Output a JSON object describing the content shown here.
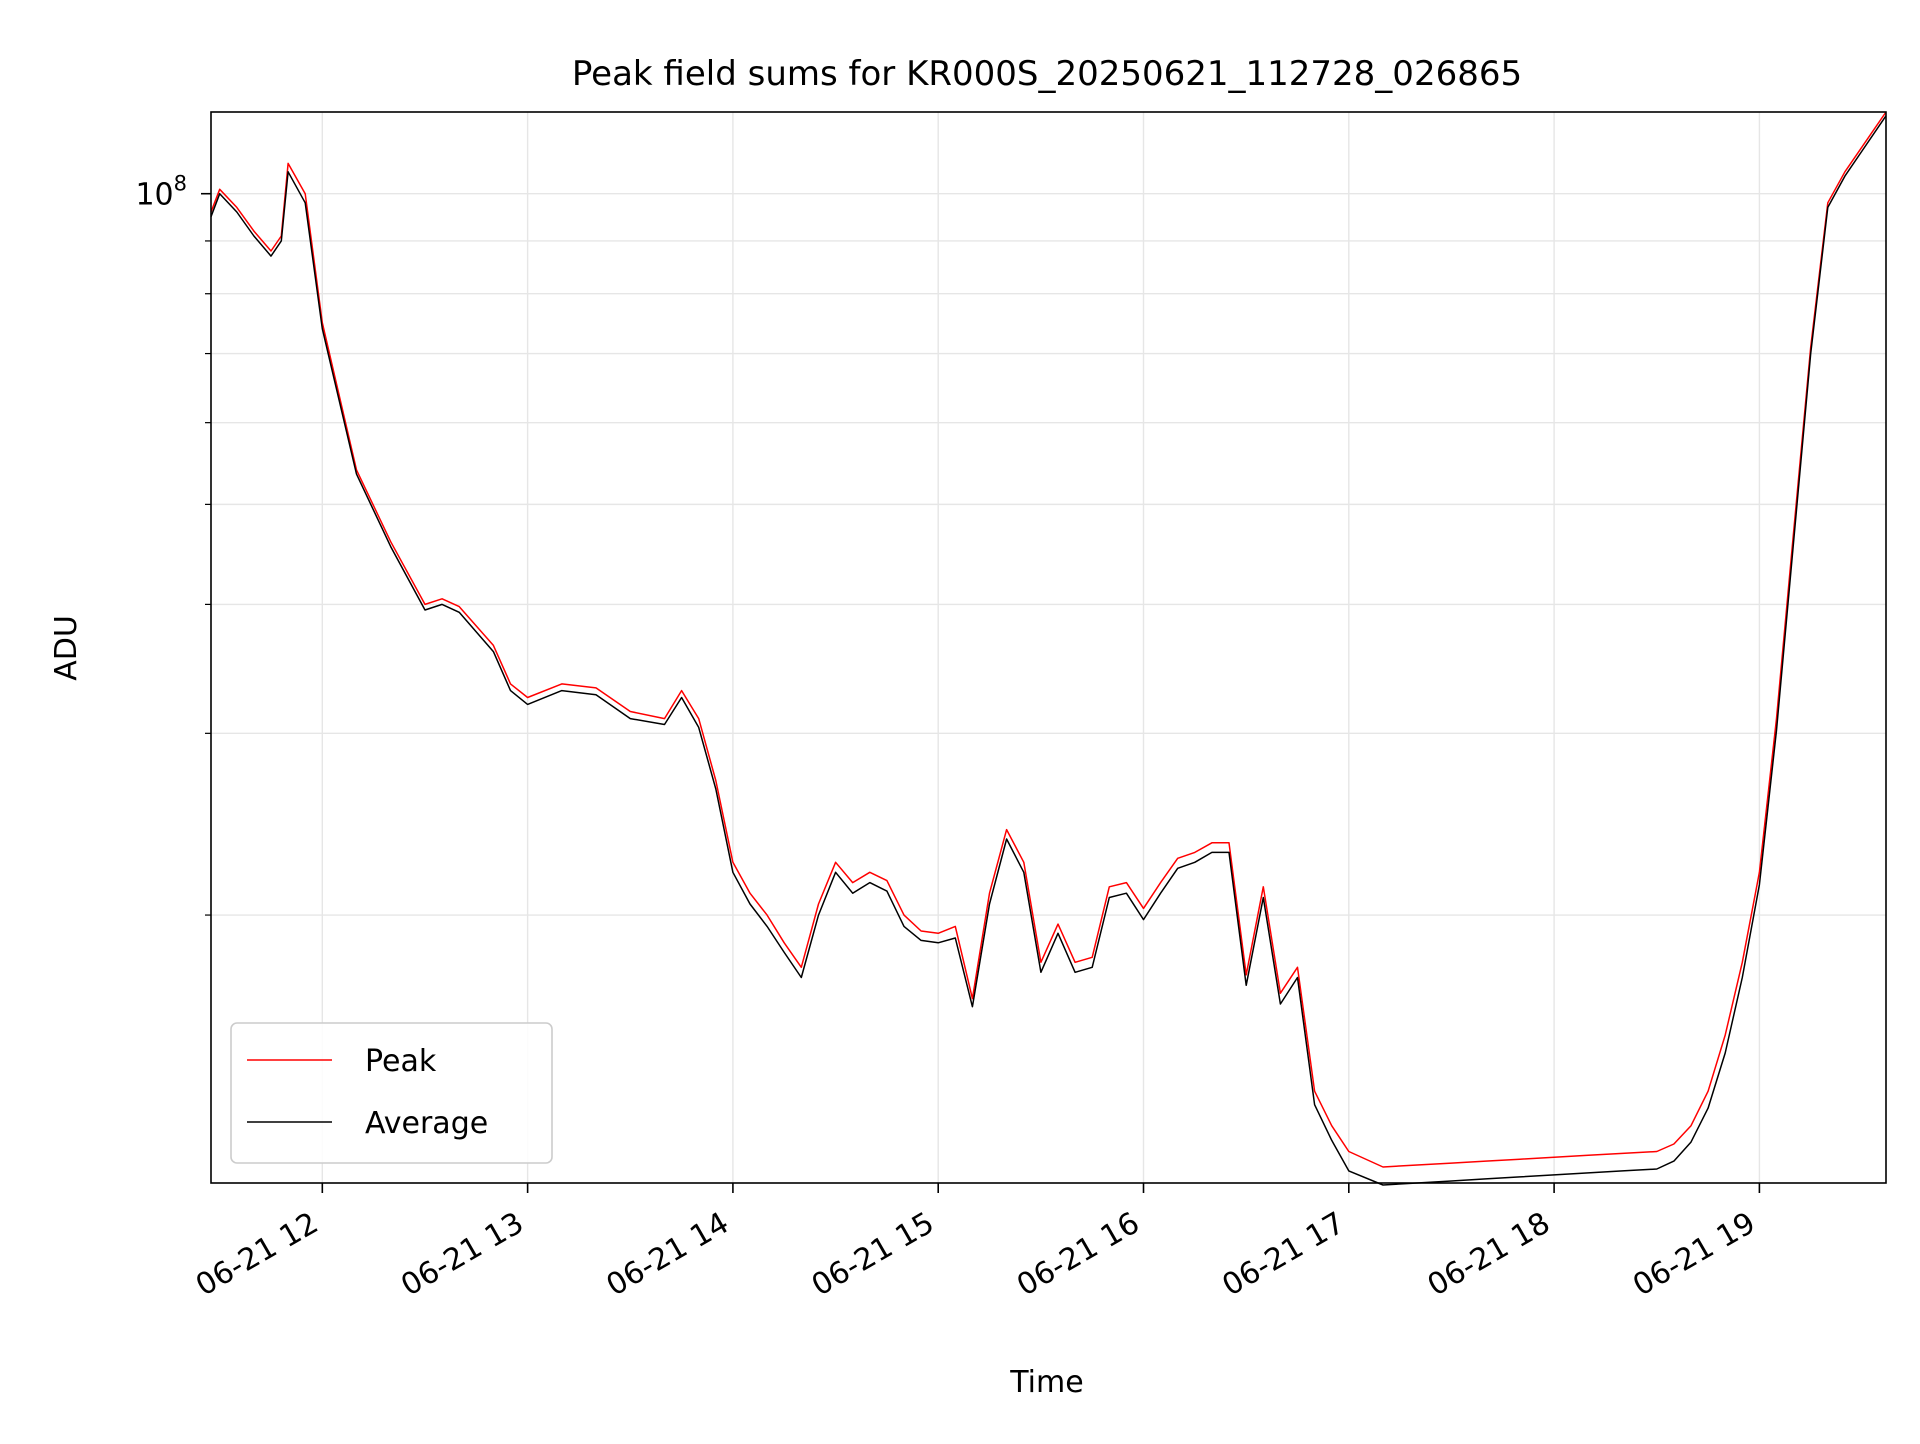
{
  "chart_data": {
    "type": "line",
    "title": "Peak field sums for KR000S_20250621_112728_026865",
    "xlabel": "Time",
    "ylabel": "ADU",
    "y_scale": "log",
    "ylim": [
      11000000,
      120000000
    ],
    "xlim": [
      "2025-06-21 11:27:28",
      "2025-06-21 19:37:00"
    ],
    "grid": true,
    "legend_position": "lower-left",
    "x_ticks": [
      {
        "t": "2025-06-21 12:00",
        "label": "06-21 12"
      },
      {
        "t": "2025-06-21 13:00",
        "label": "06-21 13"
      },
      {
        "t": "2025-06-21 14:00",
        "label": "06-21 14"
      },
      {
        "t": "2025-06-21 15:00",
        "label": "06-21 15"
      },
      {
        "t": "2025-06-21 16:00",
        "label": "06-21 16"
      },
      {
        "t": "2025-06-21 17:00",
        "label": "06-21 17"
      },
      {
        "t": "2025-06-21 18:00",
        "label": "06-21 18"
      },
      {
        "t": "2025-06-21 19:00",
        "label": "06-21 19"
      }
    ],
    "y_major_ticks": [
      {
        "value": 100000000,
        "base": "10",
        "exp": "8"
      }
    ],
    "y_minor_ticks": [
      20000000,
      30000000,
      40000000,
      50000000,
      60000000,
      70000000,
      80000000,
      90000000
    ],
    "x_times": [
      "2025-06-21 11:27:28",
      "2025-06-21 11:30",
      "2025-06-21 11:35",
      "2025-06-21 11:40",
      "2025-06-21 11:45",
      "2025-06-21 11:48",
      "2025-06-21 11:50",
      "2025-06-21 11:55",
      "2025-06-21 12:00",
      "2025-06-21 12:10",
      "2025-06-21 12:20",
      "2025-06-21 12:30",
      "2025-06-21 12:35",
      "2025-06-21 12:40",
      "2025-06-21 12:50",
      "2025-06-21 12:55",
      "2025-06-21 13:00",
      "2025-06-21 13:10",
      "2025-06-21 13:20",
      "2025-06-21 13:30",
      "2025-06-21 13:40",
      "2025-06-21 13:45",
      "2025-06-21 13:50",
      "2025-06-21 13:55",
      "2025-06-21 14:00",
      "2025-06-21 14:05",
      "2025-06-21 14:10",
      "2025-06-21 14:15",
      "2025-06-21 14:20",
      "2025-06-21 14:25",
      "2025-06-21 14:30",
      "2025-06-21 14:35",
      "2025-06-21 14:40",
      "2025-06-21 14:45",
      "2025-06-21 14:50",
      "2025-06-21 14:55",
      "2025-06-21 15:00",
      "2025-06-21 15:05",
      "2025-06-21 15:10",
      "2025-06-21 15:15",
      "2025-06-21 15:20",
      "2025-06-21 15:25",
      "2025-06-21 15:30",
      "2025-06-21 15:35",
      "2025-06-21 15:40",
      "2025-06-21 15:45",
      "2025-06-21 15:50",
      "2025-06-21 15:55",
      "2025-06-21 16:00",
      "2025-06-21 16:05",
      "2025-06-21 16:10",
      "2025-06-21 16:15",
      "2025-06-21 16:20",
      "2025-06-21 16:25",
      "2025-06-21 16:30",
      "2025-06-21 16:35",
      "2025-06-21 16:40",
      "2025-06-21 16:45",
      "2025-06-21 16:50",
      "2025-06-21 16:55",
      "2025-06-21 17:00",
      "2025-06-21 17:10",
      "2025-06-21 17:20",
      "2025-06-21 17:30",
      "2025-06-21 17:40",
      "2025-06-21 17:50",
      "2025-06-21 18:00",
      "2025-06-21 18:10",
      "2025-06-21 18:20",
      "2025-06-21 18:30",
      "2025-06-21 18:35",
      "2025-06-21 18:40",
      "2025-06-21 18:45",
      "2025-06-21 18:50",
      "2025-06-21 18:55",
      "2025-06-21 19:00",
      "2025-06-21 19:05",
      "2025-06-21 19:10",
      "2025-06-21 19:15",
      "2025-06-21 19:20",
      "2025-06-21 19:25",
      "2025-06-21 19:30",
      "2025-06-21 19:37"
    ],
    "series": [
      {
        "name": "Peak",
        "color": "#ff0000",
        "values": [
          96000000,
          101000000,
          97000000,
          92000000,
          88000000,
          91000000,
          107000000,
          100000000,
          75000000,
          54000000,
          46000000,
          40000000,
          40500000,
          39800000,
          36500000,
          33500000,
          32500000,
          33500000,
          33200000,
          31500000,
          31000000,
          33000000,
          31000000,
          27000000,
          22500000,
          21000000,
          20000000,
          18800000,
          17800000,
          20500000,
          22500000,
          21500000,
          22000000,
          21600000,
          20000000,
          19300000,
          19200000,
          19500000,
          16600000,
          21000000,
          24200000,
          22500000,
          18000000,
          19600000,
          18000000,
          18200000,
          21300000,
          21500000,
          20300000,
          21500000,
          22700000,
          23000000,
          23500000,
          23500000,
          17500000,
          21300000,
          16800000,
          17800000,
          13500000,
          12500000,
          11800000,
          11400000,
          11450000,
          11500000,
          11550000,
          11600000,
          11650000,
          11700000,
          11750000,
          11800000,
          12000000,
          12500000,
          13500000,
          15300000,
          18000000,
          22000000,
          31000000,
          47000000,
          71000000,
          98000000,
          105000000,
          111000000,
          120000000
        ]
      },
      {
        "name": "Average",
        "color": "#000000",
        "values": [
          95000000,
          100000000,
          96000000,
          91000000,
          87000000,
          90000000,
          105000000,
          98000000,
          74000000,
          53500000,
          45500000,
          39500000,
          40000000,
          39300000,
          36000000,
          33000000,
          32000000,
          33000000,
          32700000,
          31000000,
          30600000,
          32500000,
          30400000,
          26500000,
          22000000,
          20500000,
          19500000,
          18400000,
          17400000,
          20000000,
          22000000,
          21000000,
          21500000,
          21100000,
          19500000,
          18900000,
          18800000,
          19000000,
          16300000,
          20500000,
          23700000,
          22000000,
          17600000,
          19200000,
          17600000,
          17800000,
          20800000,
          21000000,
          19800000,
          21000000,
          22200000,
          22500000,
          23000000,
          23000000,
          17100000,
          20800000,
          16400000,
          17400000,
          13100000,
          12100000,
          11300000,
          10950000,
          11000000,
          11050000,
          11100000,
          11150000,
          11200000,
          11250000,
          11300000,
          11350000,
          11550000,
          12050000,
          13000000,
          14700000,
          17400000,
          21400000,
          30200000,
          46000000,
          70000000,
          97000000,
          104000000,
          110000000,
          119000000
        ]
      }
    ]
  }
}
